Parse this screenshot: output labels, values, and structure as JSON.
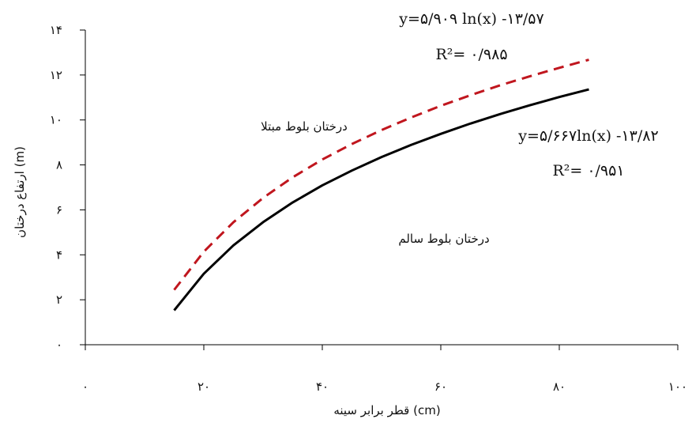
{
  "chart_data": {
    "type": "line",
    "xlabel": "قطر برابر سینه (cm)",
    "ylabel": "ارتفاع درختان (m)",
    "xlim": [
      0,
      100
    ],
    "ylim": [
      0,
      14
    ],
    "x_ticks": [
      0,
      20,
      40,
      60,
      80,
      100
    ],
    "x_tick_labels": [
      "۰",
      "۲۰",
      "۴۰",
      "۶۰",
      "۸۰",
      "۱۰۰"
    ],
    "y_ticks": [
      0,
      2,
      4,
      6,
      8,
      10,
      12,
      14
    ],
    "y_tick_labels": [
      "۰",
      "۲",
      "۴",
      "۶",
      "۸",
      "۱۰",
      "۱۲",
      "۱۴"
    ],
    "grid": false,
    "series": [
      {
        "name": "درختان بلوط مبتلا",
        "style": "dashed",
        "color": "#c0161e",
        "equation_text": "y=۵/۹۰۹ ln(x) -۱۳/۵۷",
        "r2_text": "R²= ۰/۹۸۵",
        "x": [
          15,
          20,
          25,
          30,
          35,
          40,
          45,
          50,
          55,
          60,
          65,
          70,
          75,
          80,
          85
        ],
        "y": [
          2.44,
          4.14,
          5.45,
          6.53,
          7.45,
          8.24,
          8.93,
          9.55,
          10.11,
          10.63,
          11.1,
          11.54,
          11.94,
          12.32,
          12.68
        ]
      },
      {
        "name": "درختان بلوط سالم",
        "style": "solid",
        "color": "#000000",
        "equation_text": "y=۵/۶۶۷ln(x) -۱۳/۸۲",
        "r2_text": "R²= ۰/۹۵۱",
        "x": [
          15,
          20,
          25,
          30,
          35,
          40,
          45,
          50,
          55,
          60,
          65,
          70,
          75,
          80,
          85
        ],
        "y": [
          1.53,
          3.16,
          4.42,
          5.45,
          6.33,
          7.09,
          7.75,
          8.35,
          8.89,
          9.38,
          9.84,
          10.26,
          10.65,
          11.02,
          11.36
        ]
      }
    ]
  }
}
